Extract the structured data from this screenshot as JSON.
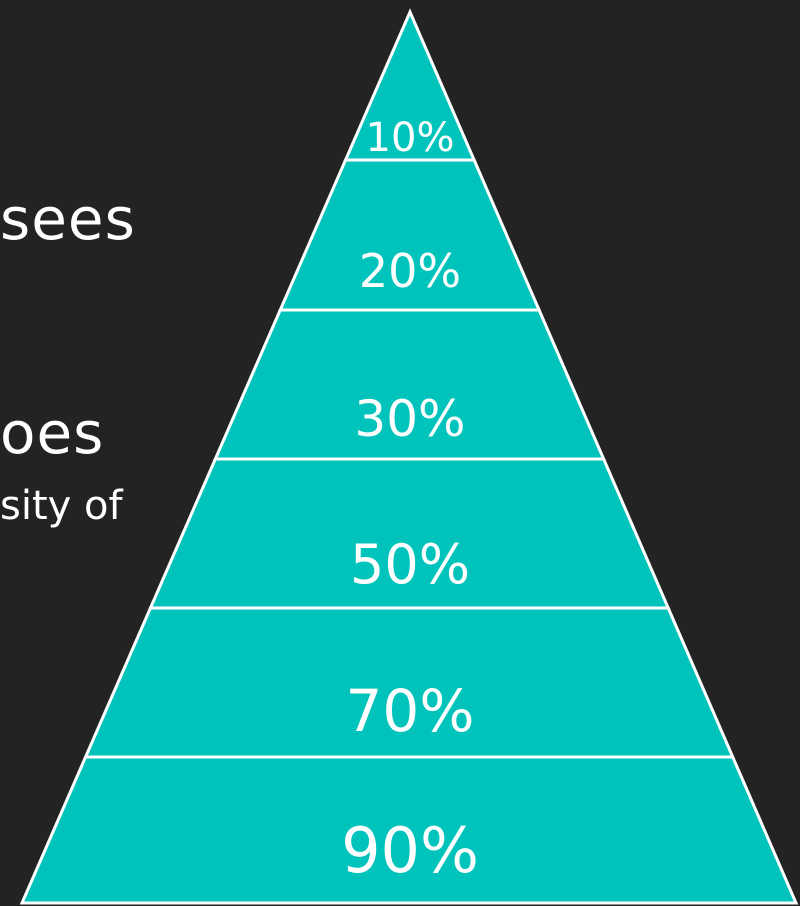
{
  "background_color": "#232323",
  "pyramid_color": "#00c4bb",
  "outline_color": "#ffffff",
  "left_text": {
    "line1": "sees",
    "line2": "oes",
    "line3": "sity of"
  },
  "pyramid": {
    "bands_top_to_bottom": [
      {
        "label": "10%"
      },
      {
        "label": "20%"
      },
      {
        "label": "30%"
      },
      {
        "label": "50%"
      },
      {
        "label": "70%"
      },
      {
        "label": "90%"
      }
    ]
  }
}
